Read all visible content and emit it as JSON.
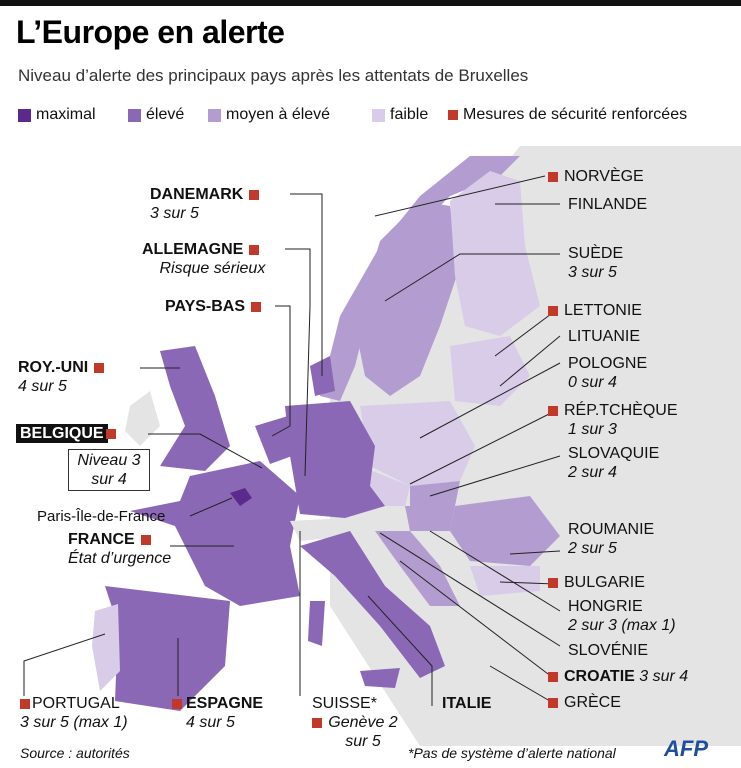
{
  "header": {
    "title": "L’Europe en alerte",
    "subtitle": "Niveau d’alerte des principaux pays après les attentats de Bruxelles"
  },
  "legend": {
    "items": [
      {
        "label": "maximal",
        "color": "#5b2a8c"
      },
      {
        "label": "élevé",
        "color": "#8a68b5"
      },
      {
        "label": "moyen à élevé",
        "color": "#b39dd0"
      },
      {
        "label": "faible",
        "color": "#d8cce8"
      }
    ],
    "security": "Mesures de sécurité renforcées"
  },
  "countries": [
    {
      "name": "DANEMARK",
      "detail": "3 sur 5"
    },
    {
      "name": "ALLEMAGNE",
      "detail": "Risque sérieux"
    },
    {
      "name": "PAYS-BAS"
    },
    {
      "name": "ROY.-UNI",
      "detail": "4 sur 5"
    },
    {
      "name": "BELGIQUE",
      "detail": "Niveau 3 sur 4"
    },
    {
      "name": "FRANCE",
      "detail": "État d’urgence"
    },
    {
      "name": "PORTUGAL",
      "detail": "3 sur 5 (max 1)"
    },
    {
      "name": "ESPAGNE",
      "detail": "4 sur 5"
    },
    {
      "name": "SUISSE*",
      "detail": "Genève 2 sur 5"
    },
    {
      "name": "ITALIE"
    },
    {
      "name": "NORVÈGE"
    },
    {
      "name": "FINLANDE"
    },
    {
      "name": "SUÈDE",
      "detail": "3 sur 5"
    },
    {
      "name": "LETTONIE"
    },
    {
      "name": "LITUANIE"
    },
    {
      "name": "POLOGNE",
      "detail": "0 sur 4"
    },
    {
      "name": "RÉP.TCHÈQUE",
      "detail": "1 sur 3"
    },
    {
      "name": "SLOVAQUIE",
      "detail": "2 sur 4"
    },
    {
      "name": "ROUMANIE",
      "detail": "2 sur 5"
    },
    {
      "name": "BULGARIE"
    },
    {
      "name": "HONGRIE",
      "detail": "2 sur 3 (max 1)"
    },
    {
      "name": "SLOVÉNIE"
    },
    {
      "name": "CROATIE",
      "detail": "3 sur 4"
    },
    {
      "name": "GRÈCE"
    }
  ],
  "region": "Paris-Île-de-France",
  "footer": {
    "source": "Source : autorités",
    "note": "*Pas de système d’alerte national",
    "logo": "AFP"
  }
}
